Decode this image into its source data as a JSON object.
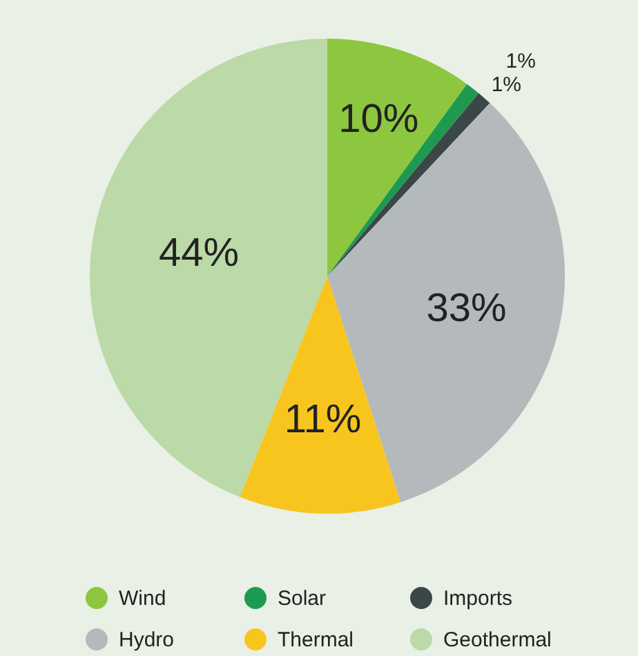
{
  "chart_data": {
    "type": "pie",
    "categories": [
      "Wind",
      "Solar",
      "Imports",
      "Hydro",
      "Thermal",
      "Geothermal"
    ],
    "values": [
      10,
      1,
      1,
      33,
      11,
      44
    ],
    "value_labels": [
      "10%",
      "1%",
      "1%",
      "33%",
      "11%",
      "44%"
    ],
    "colors": [
      "#8dc63f",
      "#1e9a50",
      "#3b4646",
      "#b4b9bb",
      "#f7c51e",
      "#bcd9a8"
    ],
    "legend": "bottom"
  }
}
